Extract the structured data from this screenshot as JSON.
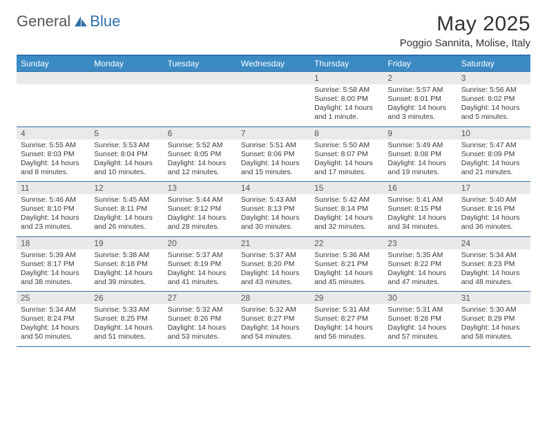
{
  "brand": {
    "part1": "General",
    "part2": "Blue"
  },
  "title": "May 2025",
  "location": "Poggio Sannita, Molise, Italy",
  "colors": {
    "header_bar": "#3b8ac4",
    "rule": "#2f6fa8",
    "daynum_bg": "#e9e9e9",
    "text": "#333333",
    "brand_blue": "#2f6fa8"
  },
  "days_of_week": [
    "Sunday",
    "Monday",
    "Tuesday",
    "Wednesday",
    "Thursday",
    "Friday",
    "Saturday"
  ],
  "weeks": [
    [
      {
        "n": "",
        "sr": "",
        "ss": "",
        "dl": ""
      },
      {
        "n": "",
        "sr": "",
        "ss": "",
        "dl": ""
      },
      {
        "n": "",
        "sr": "",
        "ss": "",
        "dl": ""
      },
      {
        "n": "",
        "sr": "",
        "ss": "",
        "dl": ""
      },
      {
        "n": "1",
        "sr": "Sunrise: 5:58 AM",
        "ss": "Sunset: 8:00 PM",
        "dl": "Daylight: 14 hours and 1 minute."
      },
      {
        "n": "2",
        "sr": "Sunrise: 5:57 AM",
        "ss": "Sunset: 8:01 PM",
        "dl": "Daylight: 14 hours and 3 minutes."
      },
      {
        "n": "3",
        "sr": "Sunrise: 5:56 AM",
        "ss": "Sunset: 8:02 PM",
        "dl": "Daylight: 14 hours and 5 minutes."
      }
    ],
    [
      {
        "n": "4",
        "sr": "Sunrise: 5:55 AM",
        "ss": "Sunset: 8:03 PM",
        "dl": "Daylight: 14 hours and 8 minutes."
      },
      {
        "n": "5",
        "sr": "Sunrise: 5:53 AM",
        "ss": "Sunset: 8:04 PM",
        "dl": "Daylight: 14 hours and 10 minutes."
      },
      {
        "n": "6",
        "sr": "Sunrise: 5:52 AM",
        "ss": "Sunset: 8:05 PM",
        "dl": "Daylight: 14 hours and 12 minutes."
      },
      {
        "n": "7",
        "sr": "Sunrise: 5:51 AM",
        "ss": "Sunset: 8:06 PM",
        "dl": "Daylight: 14 hours and 15 minutes."
      },
      {
        "n": "8",
        "sr": "Sunrise: 5:50 AM",
        "ss": "Sunset: 8:07 PM",
        "dl": "Daylight: 14 hours and 17 minutes."
      },
      {
        "n": "9",
        "sr": "Sunrise: 5:49 AM",
        "ss": "Sunset: 8:08 PM",
        "dl": "Daylight: 14 hours and 19 minutes."
      },
      {
        "n": "10",
        "sr": "Sunrise: 5:47 AM",
        "ss": "Sunset: 8:09 PM",
        "dl": "Daylight: 14 hours and 21 minutes."
      }
    ],
    [
      {
        "n": "11",
        "sr": "Sunrise: 5:46 AM",
        "ss": "Sunset: 8:10 PM",
        "dl": "Daylight: 14 hours and 23 minutes."
      },
      {
        "n": "12",
        "sr": "Sunrise: 5:45 AM",
        "ss": "Sunset: 8:11 PM",
        "dl": "Daylight: 14 hours and 26 minutes."
      },
      {
        "n": "13",
        "sr": "Sunrise: 5:44 AM",
        "ss": "Sunset: 8:12 PM",
        "dl": "Daylight: 14 hours and 28 minutes."
      },
      {
        "n": "14",
        "sr": "Sunrise: 5:43 AM",
        "ss": "Sunset: 8:13 PM",
        "dl": "Daylight: 14 hours and 30 minutes."
      },
      {
        "n": "15",
        "sr": "Sunrise: 5:42 AM",
        "ss": "Sunset: 8:14 PM",
        "dl": "Daylight: 14 hours and 32 minutes."
      },
      {
        "n": "16",
        "sr": "Sunrise: 5:41 AM",
        "ss": "Sunset: 8:15 PM",
        "dl": "Daylight: 14 hours and 34 minutes."
      },
      {
        "n": "17",
        "sr": "Sunrise: 5:40 AM",
        "ss": "Sunset: 8:16 PM",
        "dl": "Daylight: 14 hours and 36 minutes."
      }
    ],
    [
      {
        "n": "18",
        "sr": "Sunrise: 5:39 AM",
        "ss": "Sunset: 8:17 PM",
        "dl": "Daylight: 14 hours and 38 minutes."
      },
      {
        "n": "19",
        "sr": "Sunrise: 5:38 AM",
        "ss": "Sunset: 8:18 PM",
        "dl": "Daylight: 14 hours and 39 minutes."
      },
      {
        "n": "20",
        "sr": "Sunrise: 5:37 AM",
        "ss": "Sunset: 8:19 PM",
        "dl": "Daylight: 14 hours and 41 minutes."
      },
      {
        "n": "21",
        "sr": "Sunrise: 5:37 AM",
        "ss": "Sunset: 8:20 PM",
        "dl": "Daylight: 14 hours and 43 minutes."
      },
      {
        "n": "22",
        "sr": "Sunrise: 5:36 AM",
        "ss": "Sunset: 8:21 PM",
        "dl": "Daylight: 14 hours and 45 minutes."
      },
      {
        "n": "23",
        "sr": "Sunrise: 5:35 AM",
        "ss": "Sunset: 8:22 PM",
        "dl": "Daylight: 14 hours and 47 minutes."
      },
      {
        "n": "24",
        "sr": "Sunrise: 5:34 AM",
        "ss": "Sunset: 8:23 PM",
        "dl": "Daylight: 14 hours and 48 minutes."
      }
    ],
    [
      {
        "n": "25",
        "sr": "Sunrise: 5:34 AM",
        "ss": "Sunset: 8:24 PM",
        "dl": "Daylight: 14 hours and 50 minutes."
      },
      {
        "n": "26",
        "sr": "Sunrise: 5:33 AM",
        "ss": "Sunset: 8:25 PM",
        "dl": "Daylight: 14 hours and 51 minutes."
      },
      {
        "n": "27",
        "sr": "Sunrise: 5:32 AM",
        "ss": "Sunset: 8:26 PM",
        "dl": "Daylight: 14 hours and 53 minutes."
      },
      {
        "n": "28",
        "sr": "Sunrise: 5:32 AM",
        "ss": "Sunset: 8:27 PM",
        "dl": "Daylight: 14 hours and 54 minutes."
      },
      {
        "n": "29",
        "sr": "Sunrise: 5:31 AM",
        "ss": "Sunset: 8:27 PM",
        "dl": "Daylight: 14 hours and 56 minutes."
      },
      {
        "n": "30",
        "sr": "Sunrise: 5:31 AM",
        "ss": "Sunset: 8:28 PM",
        "dl": "Daylight: 14 hours and 57 minutes."
      },
      {
        "n": "31",
        "sr": "Sunrise: 5:30 AM",
        "ss": "Sunset: 8:29 PM",
        "dl": "Daylight: 14 hours and 58 minutes."
      }
    ]
  ]
}
